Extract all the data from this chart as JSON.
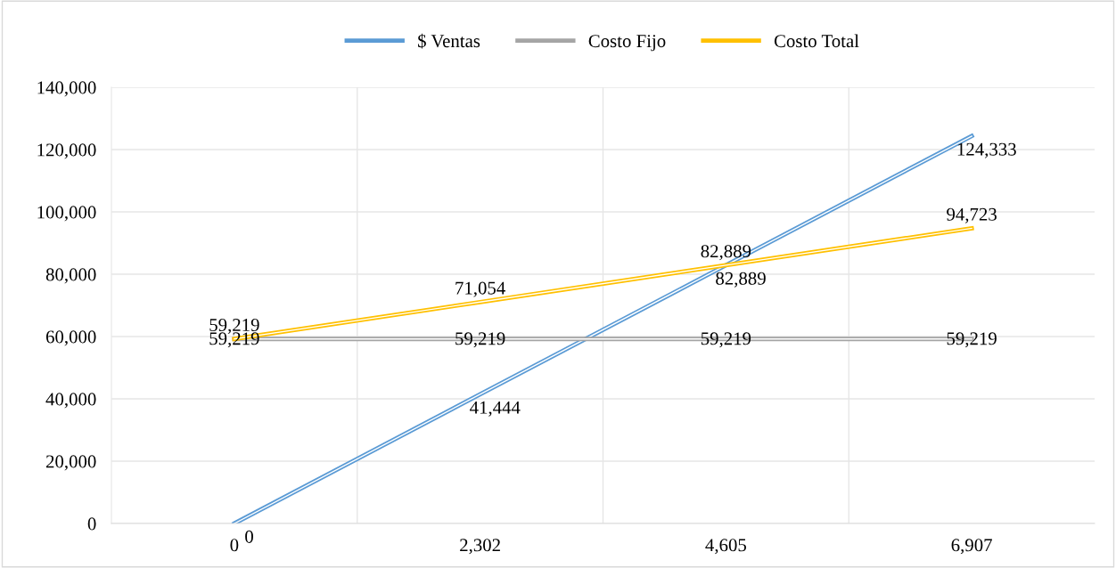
{
  "chart_data": {
    "type": "line",
    "categories": [
      "0",
      "2,302",
      "4,605",
      "6,907"
    ],
    "series": [
      {
        "name": "$ Ventas",
        "color": "#5b9bd5",
        "values": [
          0,
          41444,
          82889,
          124333
        ],
        "value_labels": [
          "0",
          "41,444",
          "82,889",
          "124,333"
        ]
      },
      {
        "name": "Costo Fijo",
        "color": "#a5a5a5",
        "values": [
          59219,
          59219,
          59219,
          59219
        ],
        "value_labels": [
          "59,219",
          "59,219",
          "59,219",
          "59,219"
        ]
      },
      {
        "name": "Costo Total",
        "color": "#ffc000",
        "values": [
          59219,
          71054,
          82889,
          94723
        ],
        "value_labels": [
          "59,219",
          "71,054",
          "82,889",
          "94,723"
        ]
      }
    ],
    "ylim": [
      0,
      140000
    ],
    "yticks": [
      {
        "value": 0,
        "label": "0"
      },
      {
        "value": 20000,
        "label": "20,000"
      },
      {
        "value": 40000,
        "label": "40,000"
      },
      {
        "value": 60000,
        "label": "60,000"
      },
      {
        "value": 80000,
        "label": "80,000"
      },
      {
        "value": 100000,
        "label": "100,000"
      },
      {
        "value": 120000,
        "label": "120,000"
      },
      {
        "value": 140000,
        "label": "140,000"
      }
    ],
    "grid": true,
    "legend": "top",
    "marker": "none",
    "line_style": "solid"
  }
}
